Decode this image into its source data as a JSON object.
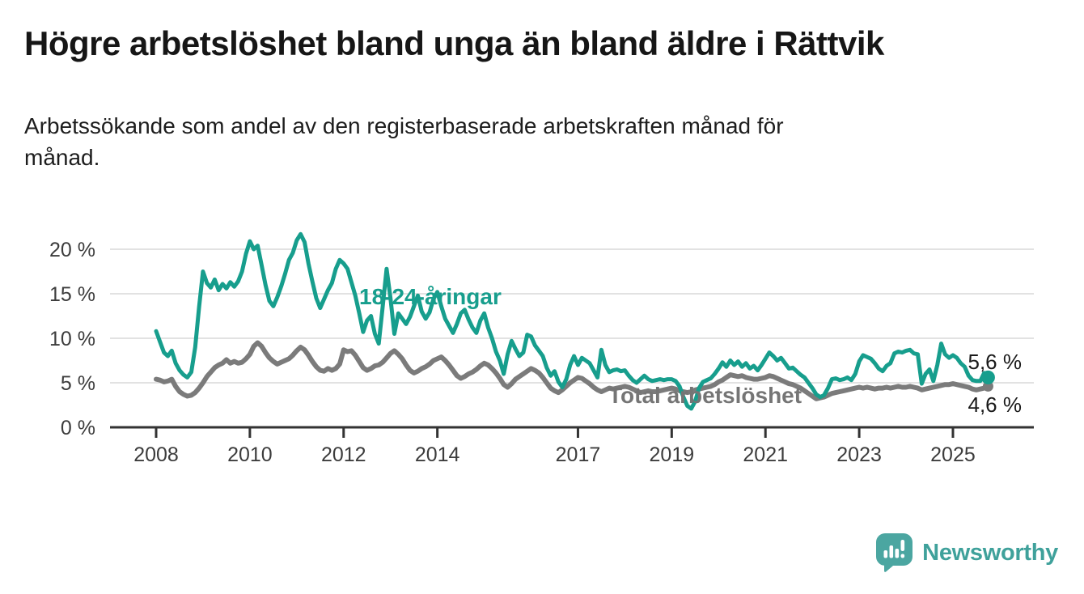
{
  "title": "Högre arbetslöshet bland unga än bland äldre i Rättvik",
  "subtitle_lines": [
    "Arbetssökande som andel av den registerbaserade arbetskraften månad för",
    "månad."
  ],
  "chart_data": {
    "type": "line",
    "unit": "percent",
    "frequency": "monthly",
    "x_start": "2008-01",
    "x_end": "2025-10",
    "x_ticks": [
      2008,
      2010,
      2012,
      2014,
      2017,
      2019,
      2021,
      2023,
      2025
    ],
    "x_tick_labels": [
      "2008",
      "2010",
      "2012",
      "2014",
      "2017",
      "2019",
      "2021",
      "2023",
      "2025"
    ],
    "y_ticks": [
      0,
      5,
      10,
      15,
      20
    ],
    "y_tick_labels": [
      "0 %",
      "5 %",
      "10 %",
      "15 %",
      "20 %"
    ],
    "ylim": [
      0,
      22.5
    ],
    "grid": true,
    "colors": {
      "young": "#179e8d",
      "total": "#7b7b7b",
      "gridline": "#d9d9d9",
      "axis": "#333333",
      "value_label": "#1a1a1a",
      "total_label_text": "#757575"
    },
    "series": [
      {
        "name": "18-24-åringar",
        "end_label": "5,6 %",
        "color": "#179e8d",
        "values": [
          10.8,
          9.6,
          8.4,
          8.0,
          8.6,
          7.2,
          6.4,
          5.9,
          5.6,
          6.2,
          9.0,
          13.5,
          17.5,
          16.2,
          15.7,
          16.6,
          15.4,
          16.1,
          15.6,
          16.3,
          15.8,
          16.4,
          17.5,
          19.5,
          20.9,
          20.0,
          20.4,
          18.2,
          16.0,
          14.2,
          13.6,
          14.6,
          15.8,
          17.2,
          18.8,
          19.6,
          21.0,
          21.7,
          20.8,
          18.4,
          16.4,
          14.5,
          13.4,
          14.4,
          15.4,
          16.2,
          17.8,
          18.8,
          18.4,
          17.8,
          16.3,
          14.8,
          12.8,
          10.7,
          12.0,
          12.5,
          10.5,
          9.4,
          13.5,
          17.8,
          14.5,
          10.5,
          12.8,
          12.2,
          11.6,
          12.4,
          13.6,
          14.8,
          13.0,
          12.2,
          12.9,
          14.4,
          15.2,
          13.6,
          12.2,
          11.4,
          10.6,
          11.6,
          12.8,
          13.2,
          12.1,
          11.2,
          10.6,
          12.0,
          12.8,
          11.2,
          10.0,
          8.5,
          7.5,
          6.0,
          8.2,
          9.7,
          8.8,
          8.0,
          8.4,
          10.4,
          10.2,
          9.2,
          8.6,
          8.0,
          6.7,
          5.8,
          6.3,
          5.1,
          4.5,
          5.4,
          7.0,
          8.0,
          7.0,
          7.8,
          7.5,
          7.2,
          6.4,
          5.6,
          8.7,
          7.0,
          6.2,
          6.4,
          6.5,
          6.3,
          6.4,
          5.8,
          5.3,
          5.0,
          5.4,
          5.8,
          5.4,
          5.2,
          5.3,
          5.4,
          5.3,
          5.4,
          5.4,
          5.2,
          4.6,
          3.4,
          2.4,
          2.1,
          2.9,
          4.4,
          5.1,
          5.3,
          5.5,
          6.0,
          6.6,
          7.3,
          6.8,
          7.5,
          7.0,
          7.4,
          6.8,
          7.2,
          6.6,
          6.9,
          6.4,
          7.0,
          7.7,
          8.4,
          8.0,
          7.5,
          7.8,
          7.2,
          6.6,
          6.7,
          6.3,
          5.9,
          5.6,
          5.0,
          4.4,
          3.7,
          3.4,
          3.6,
          4.4,
          5.4,
          5.5,
          5.3,
          5.4,
          5.6,
          5.3,
          6.0,
          7.4,
          8.1,
          7.9,
          7.7,
          7.2,
          6.6,
          6.3,
          6.9,
          7.2,
          8.3,
          8.5,
          8.4,
          8.6,
          8.7,
          8.3,
          8.2,
          4.9,
          6.0,
          6.5,
          5.2,
          7.0,
          9.4,
          8.2,
          7.8,
          8.1,
          7.8,
          7.2,
          6.8,
          5.8,
          5.3,
          5.2,
          5.2,
          6.1,
          5.6
        ]
      },
      {
        "name": "Total arbetslöshet",
        "end_label": "4,6 %",
        "color": "#7b7b7b",
        "values": [
          5.4,
          5.3,
          5.1,
          5.2,
          5.4,
          4.6,
          4.0,
          3.7,
          3.5,
          3.6,
          3.9,
          4.4,
          5.0,
          5.7,
          6.2,
          6.7,
          7.0,
          7.2,
          7.6,
          7.2,
          7.4,
          7.2,
          7.3,
          7.7,
          8.2,
          9.1,
          9.5,
          9.1,
          8.4,
          7.8,
          7.4,
          7.1,
          7.3,
          7.5,
          7.7,
          8.1,
          8.6,
          9.0,
          8.7,
          8.1,
          7.4,
          6.8,
          6.4,
          6.3,
          6.6,
          6.4,
          6.6,
          7.1,
          8.7,
          8.5,
          8.6,
          8.1,
          7.4,
          6.7,
          6.4,
          6.6,
          6.9,
          7.0,
          7.3,
          7.8,
          8.3,
          8.6,
          8.2,
          7.7,
          7.0,
          6.4,
          6.1,
          6.3,
          6.6,
          6.8,
          7.1,
          7.5,
          7.7,
          7.9,
          7.5,
          7.0,
          6.4,
          5.8,
          5.5,
          5.7,
          6.0,
          6.2,
          6.5,
          6.9,
          7.2,
          7.0,
          6.6,
          6.1,
          5.5,
          4.8,
          4.5,
          4.9,
          5.4,
          5.7,
          6.0,
          6.3,
          6.6,
          6.4,
          6.1,
          5.6,
          5.0,
          4.4,
          4.1,
          3.9,
          4.2,
          4.6,
          5.0,
          5.3,
          5.6,
          5.5,
          5.2,
          4.9,
          4.5,
          4.2,
          4.0,
          4.2,
          4.4,
          4.3,
          4.4,
          4.5,
          4.6,
          4.5,
          4.3,
          4.1,
          3.9,
          4.0,
          4.1,
          4.0,
          4.0,
          4.1,
          4.2,
          4.3,
          4.4,
          4.3,
          4.1,
          4.0,
          3.9,
          4.0,
          4.2,
          4.3,
          4.4,
          4.5,
          4.6,
          4.8,
          5.1,
          5.3,
          5.6,
          5.9,
          5.8,
          5.7,
          5.8,
          5.6,
          5.5,
          5.4,
          5.4,
          5.5,
          5.6,
          5.8,
          5.7,
          5.5,
          5.3,
          5.1,
          4.9,
          4.8,
          4.6,
          4.4,
          4.1,
          3.8,
          3.5,
          3.2,
          3.3,
          3.4,
          3.6,
          3.8,
          3.9,
          4.0,
          4.1,
          4.2,
          4.3,
          4.4,
          4.5,
          4.4,
          4.5,
          4.4,
          4.3,
          4.4,
          4.4,
          4.5,
          4.4,
          4.5,
          4.6,
          4.5,
          4.5,
          4.6,
          4.5,
          4.4,
          4.2,
          4.3,
          4.4,
          4.5,
          4.6,
          4.7,
          4.8,
          4.8,
          4.9,
          4.8,
          4.7,
          4.6,
          4.5,
          4.3,
          4.2,
          4.3,
          4.4,
          4.6
        ]
      }
    ]
  },
  "footer": {
    "brand": "Newsworthy",
    "logo_icon": "newsworthy-speech-bubble-chart-icon",
    "brand_color": "#3fa19b",
    "logo_fill": "#4ba6a1"
  }
}
